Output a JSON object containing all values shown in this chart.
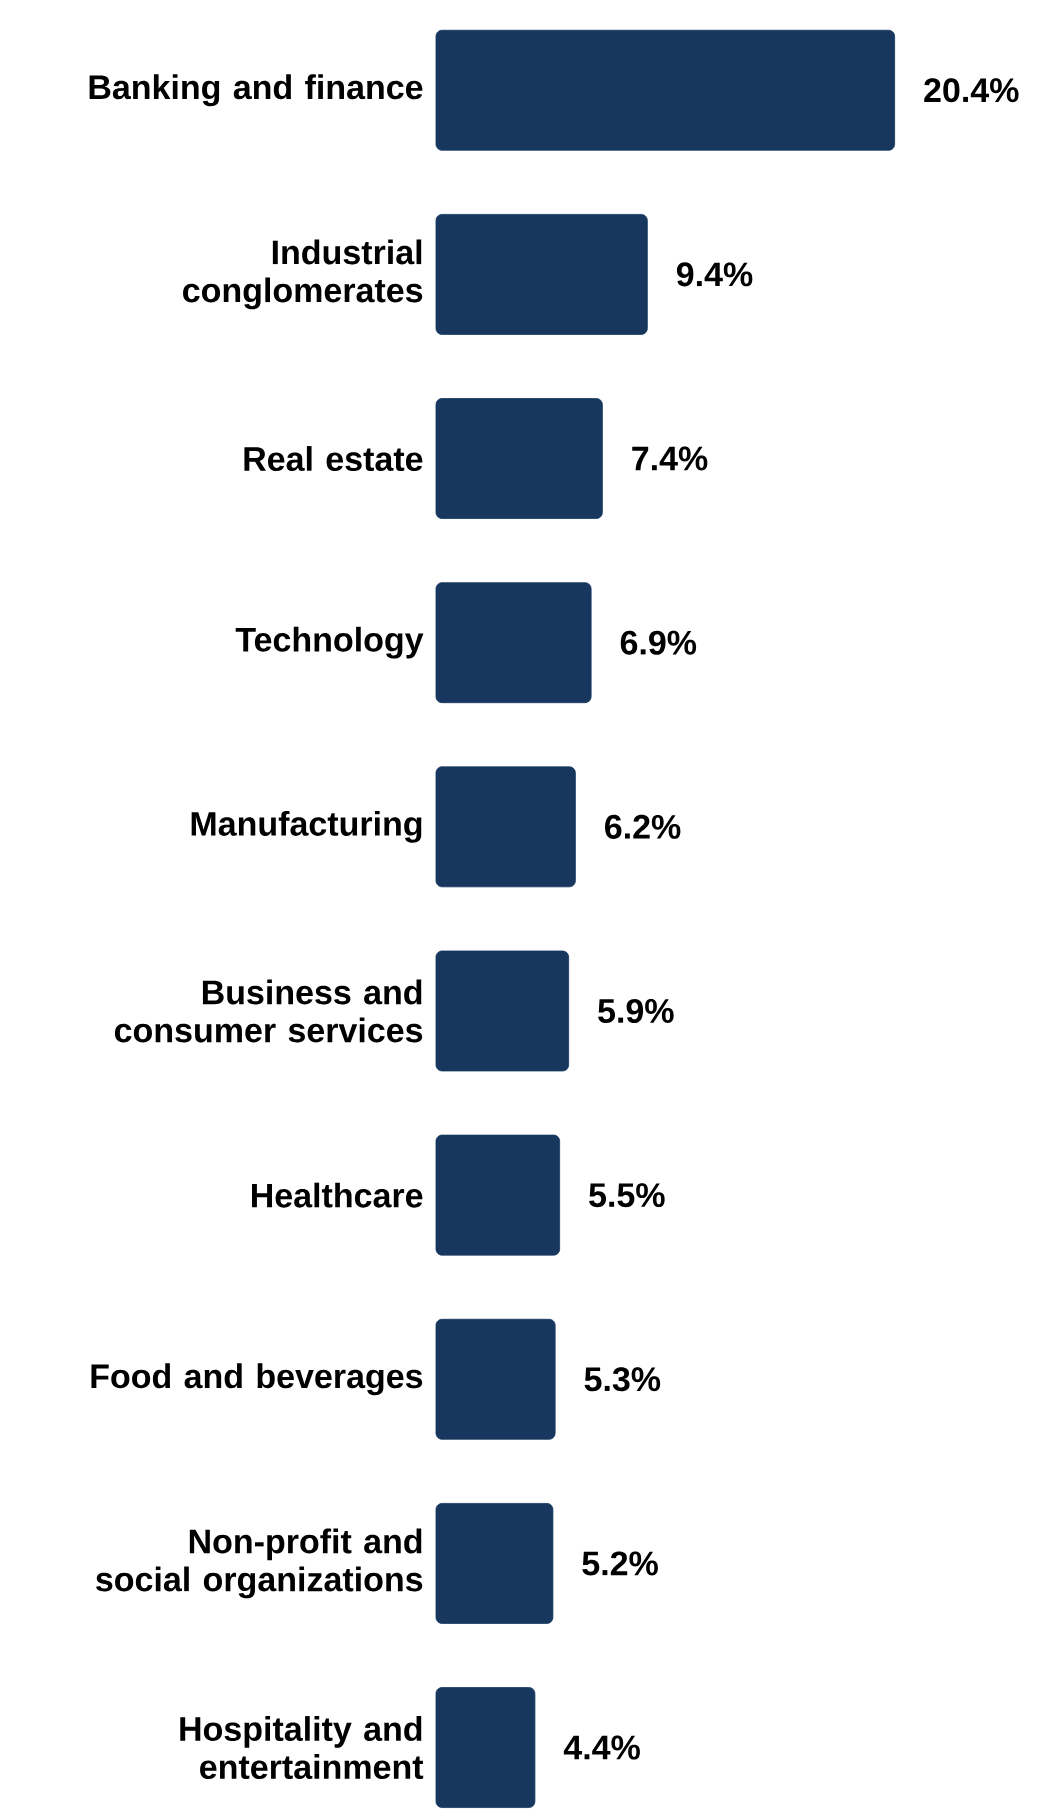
{
  "chart_data": {
    "type": "bar",
    "orientation": "horizontal",
    "color": "#17375e",
    "categories": [
      "Banking and finance",
      "Industrial conglomerates",
      "Real estate",
      "Technology",
      "Manufacturing",
      "Business and consumer services",
      "Healthcare",
      "Food and beverages",
      "Non-profit and social organizations",
      "Hospitality and entertainment"
    ],
    "values": [
      20.4,
      9.4,
      7.4,
      6.9,
      6.2,
      5.9,
      5.5,
      5.3,
      5.2,
      4.4
    ],
    "value_labels": [
      "20.4%",
      "9.4%",
      "7.4%",
      "6.9%",
      "6.2%",
      "5.9%",
      "5.5%",
      "5.3%",
      "5.2%",
      "4.4%"
    ]
  }
}
